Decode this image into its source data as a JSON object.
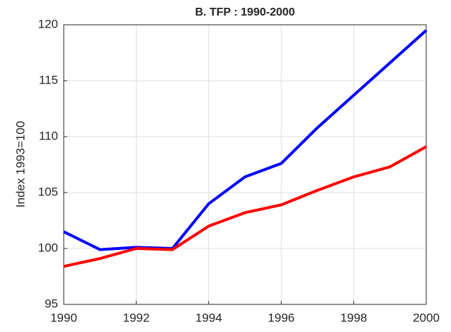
{
  "chart_data": {
    "type": "line",
    "title": "B. TFP : 1990-2000",
    "ylabel": "Index 1993=100",
    "x": [
      1990,
      1991,
      1992,
      1993,
      1994,
      1995,
      1996,
      1997,
      1998,
      1999,
      2000
    ],
    "series": [
      {
        "color": "#0000ff",
        "values": [
          101.5,
          99.9,
          100.1,
          100.0,
          104.0,
          106.4,
          107.6,
          110.8,
          113.7,
          116.6,
          119.5
        ]
      },
      {
        "color": "#ff0000",
        "values": [
          98.4,
          99.1,
          100.0,
          99.9,
          102.0,
          103.2,
          103.9,
          105.2,
          106.4,
          107.3,
          109.1
        ]
      }
    ],
    "xlim": [
      1990,
      2000
    ],
    "xticks": [
      1990,
      1992,
      1994,
      1996,
      1998,
      2000
    ],
    "ylim": [
      95,
      120
    ],
    "yticks": [
      95,
      100,
      105,
      110,
      115,
      120
    ],
    "grid": true
  }
}
